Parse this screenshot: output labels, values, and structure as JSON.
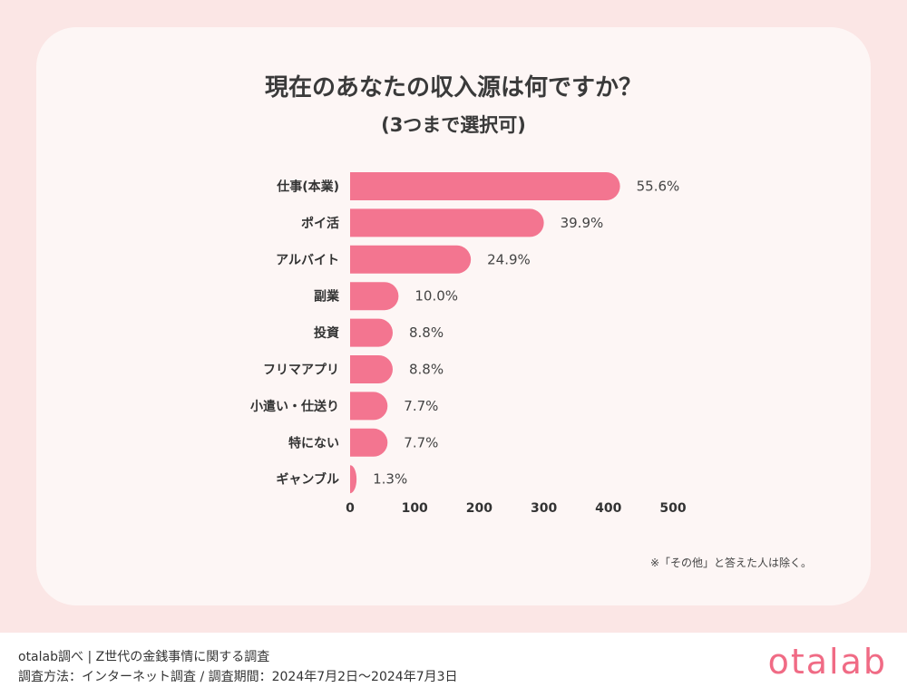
{
  "chart_data": {
    "type": "bar",
    "orientation": "horizontal",
    "title": "現在のあなたの収入源は何ですか？",
    "subtitle": "(3つまで選択可)",
    "categories": [
      "仕事(本業)",
      "ポイ活",
      "アルバイト",
      "副業",
      "投資",
      "フリマアプリ",
      "小遣い・仕送り",
      "特にない",
      "ギャンブル"
    ],
    "values": [
      418,
      300,
      187,
      75,
      66,
      66,
      58,
      58,
      10
    ],
    "labels": [
      "55.6%",
      "39.9%",
      "24.9%",
      "10.0%",
      "8.8%",
      "8.8%",
      "7.7%",
      "7.7%",
      "1.3%"
    ],
    "xticks": [
      "0",
      "100",
      "200",
      "300",
      "400",
      "500"
    ],
    "xlim": [
      0,
      500
    ],
    "bar_color": "#f37590",
    "grid": false
  },
  "note": "※「その他」と答えた人は除く。",
  "footer": {
    "source_line1": "otalab調べ | Z世代の金銭事情に関する調査",
    "source_line2": "調査方法：インターネット調査 / 調査期間：2024年7月2日〜2024年7月3日",
    "logo": "otalab"
  }
}
